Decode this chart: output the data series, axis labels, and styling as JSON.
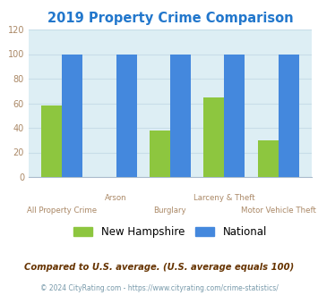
{
  "title": "2019 Property Crime Comparison",
  "title_color": "#2277cc",
  "categories": [
    "All Property Crime",
    "Arson",
    "Burglary",
    "Larceny & Theft",
    "Motor Vehicle Theft"
  ],
  "nh_values": [
    58,
    0,
    38,
    65,
    30
  ],
  "national_values": [
    100,
    100,
    100,
    100,
    100
  ],
  "nh_color": "#8dc63f",
  "national_color": "#4488dd",
  "ylim": [
    0,
    120
  ],
  "yticks": [
    0,
    20,
    40,
    60,
    80,
    100,
    120
  ],
  "plot_bg": "#ddeef4",
  "bar_width": 0.38,
  "legend_nh": "New Hampshire",
  "legend_nat": "National",
  "footnote1": "Compared to U.S. average. (U.S. average equals 100)",
  "footnote2": "© 2024 CityRating.com - https://www.cityrating.com/crime-statistics/",
  "footnote1_color": "#663300",
  "footnote2_color": "#7799aa",
  "x_label_color": "#aa8866",
  "grid_color": "#c8dde8",
  "ytick_color": "#aa8866"
}
